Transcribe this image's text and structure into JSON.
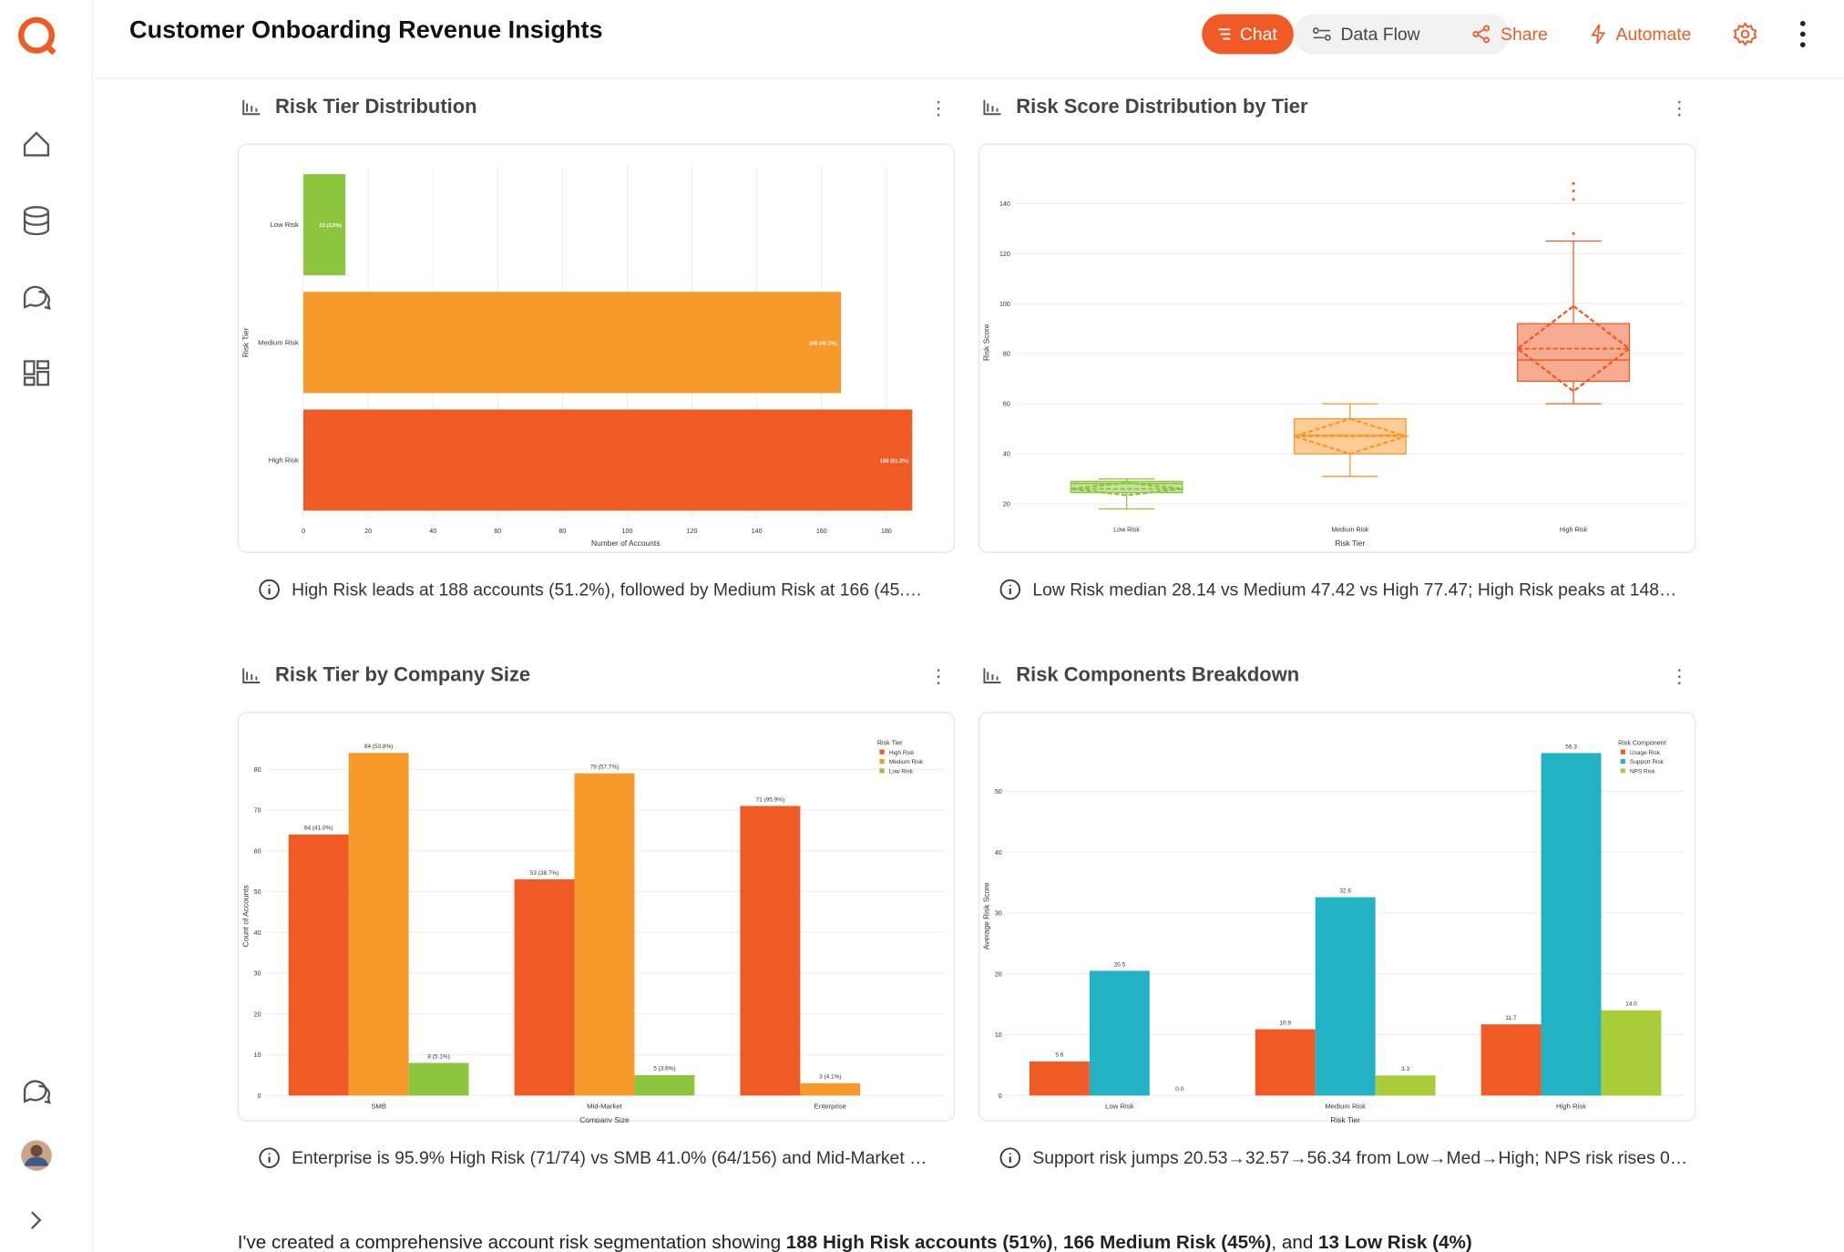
{
  "header": {
    "title": "Customer Onboarding Revenue Insights",
    "buttons": [
      "Chat",
      "Data Flow",
      "Share",
      "Automate"
    ]
  },
  "panels": [
    {
      "title": "Risk Tier Distribution",
      "insight": "High Risk leads at 188 accounts (51.2%), followed by Medium Risk at 166 (45.…",
      "chart": {
        "type": "bar",
        "orientation": "horizontal",
        "x_label": "Number of Accounts",
        "y_label": "Risk Tier",
        "categories": [
          "Low Risk",
          "Medium Risk",
          "High Risk"
        ],
        "values": [
          13,
          166,
          188
        ],
        "value_labels": [
          "13 (3.5%)",
          "166 (45.2%)",
          "188 (51.2%)"
        ],
        "colors": [
          "#8cc63f",
          "#f7992b",
          "#f05a24"
        ],
        "xlim": [
          0,
          199
        ],
        "xticks": [
          0,
          20,
          40,
          60,
          80,
          100,
          120,
          140,
          160,
          180
        ],
        "grid": true
      }
    },
    {
      "title": "Risk Score Distribution by Tier",
      "insight": "Low Risk median 28.14 vs Medium 47.42 vs High 77.47; High Risk peaks at 148…",
      "chart": {
        "type": "box",
        "x_label": "Risk Tier",
        "y_label": "Risk Score",
        "categories": [
          "Low Risk",
          "Medium Risk",
          "High Risk"
        ],
        "boxes": [
          {
            "min": 18,
            "q1": 24.5,
            "median": 28.14,
            "q3": 29,
            "max": 30,
            "mean": 26,
            "sd": 2.5,
            "outliers": []
          },
          {
            "min": 31,
            "q1": 40,
            "median": 47.42,
            "q3": 54,
            "max": 60,
            "mean": 47,
            "sd": 7,
            "outliers": []
          },
          {
            "min": 60,
            "q1": 69,
            "median": 77.47,
            "q3": 92,
            "max": 125,
            "mean": 82,
            "sd": 17,
            "outliers": [
              128,
              141.6,
              145,
              148
            ]
          }
        ],
        "colors": [
          "#8cc63f",
          "#f7992b",
          "#f05a24"
        ],
        "ylim": [
          14,
          155
        ],
        "yticks": [
          20,
          40,
          60,
          80,
          100,
          120,
          140
        ],
        "grid": true
      }
    },
    {
      "title": "Risk Tier by Company Size",
      "insight": "Enterprise is 95.9% High Risk (71/74) vs SMB 41.0% (64/156) and Mid-Market …",
      "chart": {
        "type": "bar",
        "orientation": "vertical",
        "x_label": "Company Size",
        "y_label": "Count of Accounts",
        "legend_title": "Risk Tier",
        "legend": "top-right",
        "categories": [
          "SMB",
          "Mid-Market",
          "Enterprise"
        ],
        "series": [
          {
            "name": "High Risk",
            "color": "#f05a24",
            "values": [
              64,
              53,
              71
            ],
            "value_labels": [
              "64 (41.0%)",
              "53 (38.7%)",
              "71 (95.9%)"
            ]
          },
          {
            "name": "Medium Risk",
            "color": "#f7992b",
            "values": [
              84,
              79,
              3
            ],
            "value_labels": [
              "84 (53.8%)",
              "79 (57.7%)",
              "3 (4.1%)"
            ]
          },
          {
            "name": "Low Risk",
            "color": "#8cc63f",
            "values": [
              8,
              5,
              0
            ],
            "value_labels": [
              "8 (5.1%)",
              "5 (3.6%)",
              null
            ]
          }
        ],
        "ylim": [
          0,
          88
        ],
        "yticks": [
          0,
          10,
          20,
          30,
          40,
          50,
          60,
          70,
          80
        ],
        "grid": true
      }
    },
    {
      "title": "Risk Components Breakdown",
      "insight": "Support risk jumps 20.53→32.57→56.34 from Low→Med→High; NPS risk rises 0…",
      "chart": {
        "type": "bar",
        "orientation": "vertical",
        "x_label": "Risk Tier",
        "y_label": "Average Risk Score",
        "legend_title": "Risk Component",
        "legend": "top-right",
        "categories": [
          "Low Risk",
          "Medium Risk",
          "High Risk"
        ],
        "series": [
          {
            "name": "Usage Risk",
            "color": "#f05a24",
            "values": [
              5.6,
              10.9,
              11.7
            ],
            "value_labels": [
              "5.6",
              "10.9",
              "11.7"
            ]
          },
          {
            "name": "Support Risk",
            "color": "#22b1c5",
            "values": [
              20.5,
              32.6,
              56.3
            ],
            "value_labels": [
              "20.5",
              "32.6",
              "56.3"
            ]
          },
          {
            "name": "NPS Risk",
            "color": "#a9cd38",
            "values": [
              0.0,
              3.3,
              14.0
            ],
            "value_labels": [
              "0.0",
              "3.3",
              "14.0"
            ]
          }
        ],
        "ylim": [
          0,
          59
        ],
        "yticks": [
          0,
          10,
          20,
          30,
          40,
          50
        ],
        "grid": true
      }
    }
  ],
  "summary": [
    "I've created a comprehensive account risk segmentation showing ",
    "188 High Risk accounts (51%)",
    ", ",
    "166 Medium Risk (45%)",
    ", and ",
    "13 Low Risk (4%)"
  ]
}
